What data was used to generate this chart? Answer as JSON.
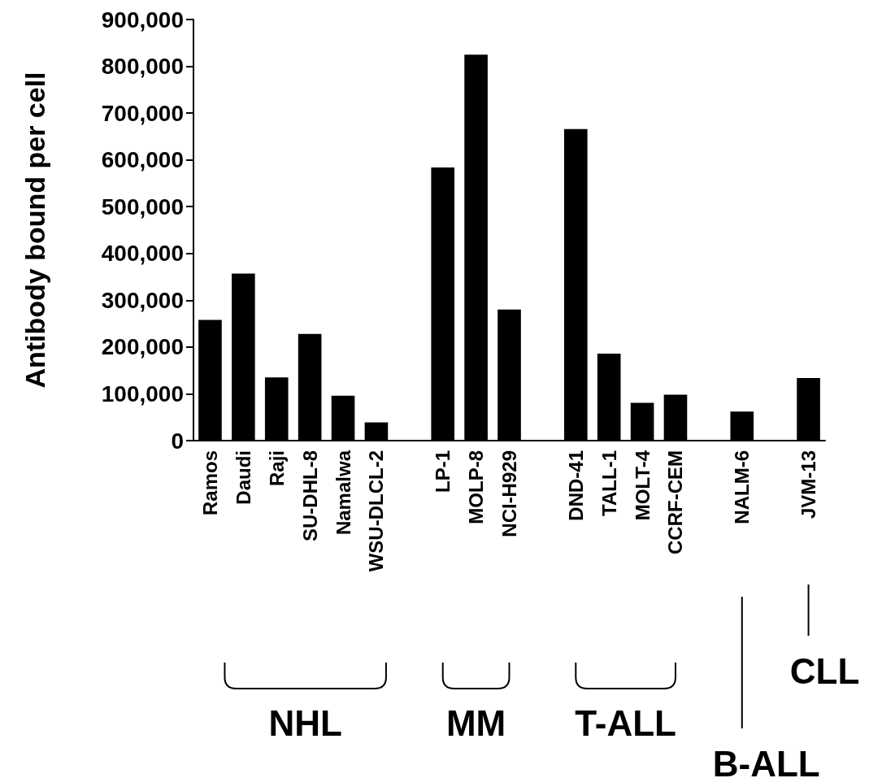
{
  "chart_data": {
    "type": "bar",
    "ylabel": "Antibody bound per cell",
    "categories": [
      "Ramos",
      "Daudi",
      "Raji",
      "SU-DHL-8",
      "Namalwa",
      "WSU-DLCL-2",
      null,
      "LP-1",
      "MOLP-8",
      "NCI-H929",
      null,
      "DND-41",
      "TALL-1",
      "MOLT-4",
      "CCRF-CEM",
      null,
      "NALM-6",
      null,
      "JVM-13"
    ],
    "values": [
      258000,
      357000,
      135000,
      228000,
      96000,
      39000,
      null,
      584000,
      825000,
      280000,
      null,
      666000,
      186000,
      81000,
      98000,
      null,
      62000,
      null,
      134000
    ],
    "color": "#000000",
    "ylim": [
      0,
      900000
    ],
    "yticks": [
      {
        "value": 0,
        "label": "0"
      },
      {
        "value": 100000,
        "label": "100,000"
      },
      {
        "value": 200000,
        "label": "200,000"
      },
      {
        "value": 300000,
        "label": "300,000"
      },
      {
        "value": 400000,
        "label": "400,000"
      },
      {
        "value": 500000,
        "label": "500,000"
      },
      {
        "value": 600000,
        "label": "600,000"
      },
      {
        "value": 700000,
        "label": "700,000"
      },
      {
        "value": 800000,
        "label": "800,000"
      },
      {
        "value": 900000,
        "label": "900,000"
      }
    ],
    "annotations": [
      "NHL",
      "MM",
      "T-ALL",
      "B-ALL",
      "CLL"
    ]
  }
}
